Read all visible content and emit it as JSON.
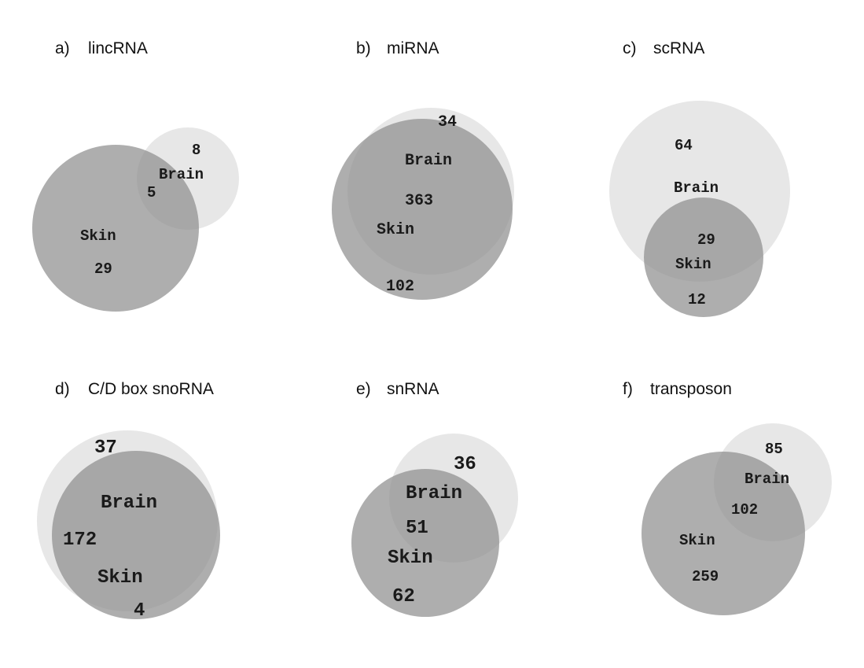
{
  "panels": [
    {
      "letter": "a)",
      "title": "lincRNA",
      "labels": {
        "brain_only": "8",
        "brain_name": "Brain",
        "shared": "5",
        "skin_name": "Skin",
        "skin_only": "29"
      }
    },
    {
      "letter": "b)",
      "title": "miRNA",
      "labels": {
        "brain_only": "34",
        "brain_name": "Brain",
        "shared": "363",
        "skin_name": "Skin",
        "skin_only": "102"
      }
    },
    {
      "letter": "c)",
      "title": "scRNA",
      "labels": {
        "brain_only": "64",
        "brain_name": "Brain",
        "shared": "29",
        "skin_name": "Skin",
        "skin_only": "12"
      }
    },
    {
      "letter": "d)",
      "title": "C/D box snoRNA",
      "labels": {
        "brain_only": "37",
        "brain_name": "Brain",
        "shared": "172",
        "skin_name": "Skin",
        "skin_only": "4"
      }
    },
    {
      "letter": "e)",
      "title": "snRNA",
      "labels": {
        "brain_only": "36",
        "brain_name": "Brain",
        "shared": "51",
        "skin_name": "Skin",
        "skin_only": "62"
      }
    },
    {
      "letter": "f)",
      "title": "transposon",
      "labels": {
        "brain_only": "85",
        "brain_name": "Brain",
        "shared": "102",
        "skin_name": "Skin",
        "skin_only": "259"
      }
    }
  ],
  "colors": {
    "brain_circle": "#d3d3d3",
    "skin_circle": "#8f8f8f"
  }
}
